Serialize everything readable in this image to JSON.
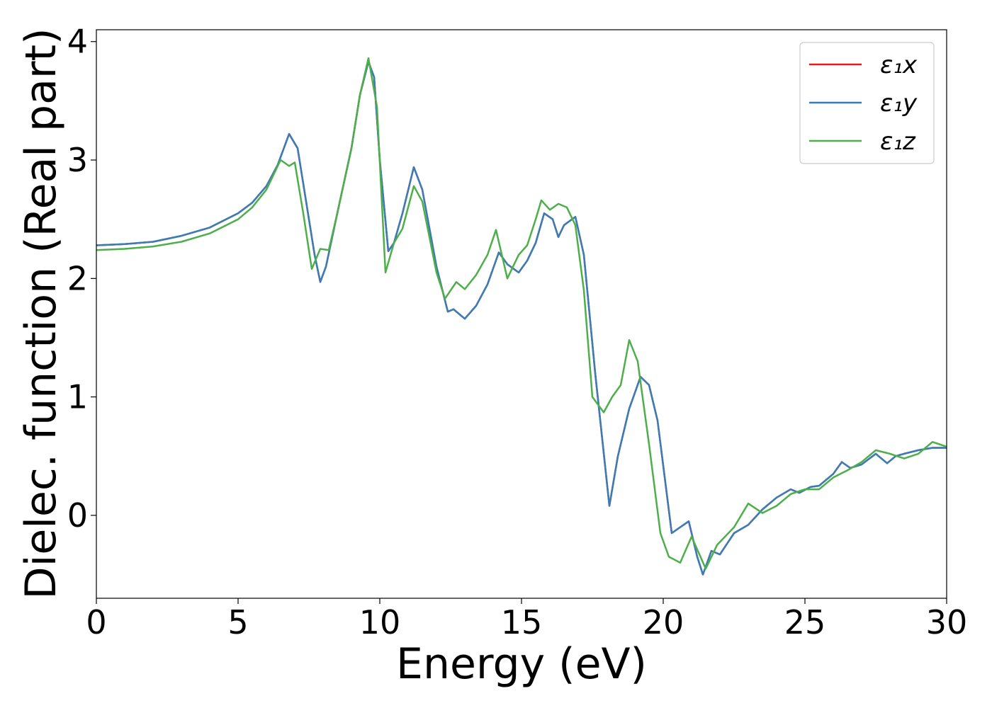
{
  "chart_data": {
    "type": "line",
    "title": "",
    "xlabel": "Energy (eV)",
    "ylabel": "Dielec. function (Real part)",
    "xlim": [
      0,
      30
    ],
    "ylim": [
      -0.7,
      4.1
    ],
    "xticks": [
      0,
      5,
      10,
      15,
      20,
      25,
      30
    ],
    "xtick_labels": [
      "0",
      "5",
      "10",
      "15",
      "20",
      "25",
      "30"
    ],
    "yticks": [
      0,
      1,
      2,
      3,
      4
    ],
    "ytick_labels": [
      "0",
      "1",
      "2",
      "3",
      "4"
    ],
    "grid": false,
    "legend_position": "top-right",
    "series": [
      {
        "name": "ε₁x",
        "color": "#e41a1c",
        "points": [
          [
            0,
            2.28
          ],
          [
            1,
            2.29
          ],
          [
            2,
            2.31
          ],
          [
            3,
            2.36
          ],
          [
            4,
            2.43
          ],
          [
            5,
            2.55
          ],
          [
            5.5,
            2.64
          ],
          [
            6,
            2.78
          ],
          [
            6.4,
            2.96
          ],
          [
            6.8,
            3.22
          ],
          [
            7.1,
            3.1
          ],
          [
            7.4,
            2.65
          ],
          [
            7.7,
            2.2
          ],
          [
            7.9,
            1.97
          ],
          [
            8.1,
            2.1
          ],
          [
            8.5,
            2.55
          ],
          [
            9,
            3.1
          ],
          [
            9.3,
            3.55
          ],
          [
            9.6,
            3.83
          ],
          [
            9.8,
            3.7
          ],
          [
            10,
            3.0
          ],
          [
            10.3,
            2.23
          ],
          [
            10.5,
            2.3
          ],
          [
            10.8,
            2.55
          ],
          [
            11.2,
            2.94
          ],
          [
            11.5,
            2.75
          ],
          [
            12,
            2.1
          ],
          [
            12.4,
            1.72
          ],
          [
            12.6,
            1.74
          ],
          [
            13,
            1.66
          ],
          [
            13.4,
            1.77
          ],
          [
            13.8,
            1.95
          ],
          [
            14.2,
            2.22
          ],
          [
            14.5,
            2.12
          ],
          [
            14.9,
            2.05
          ],
          [
            15.2,
            2.15
          ],
          [
            15.5,
            2.3
          ],
          [
            15.8,
            2.55
          ],
          [
            16.1,
            2.5
          ],
          [
            16.3,
            2.35
          ],
          [
            16.5,
            2.45
          ],
          [
            16.9,
            2.52
          ],
          [
            17.2,
            2.2
          ],
          [
            17.6,
            1.2
          ],
          [
            18.1,
            0.08
          ],
          [
            18.4,
            0.5
          ],
          [
            18.8,
            0.9
          ],
          [
            19.2,
            1.17
          ],
          [
            19.5,
            1.1
          ],
          [
            19.8,
            0.8
          ],
          [
            20.3,
            -0.15
          ],
          [
            20.6,
            -0.1
          ],
          [
            20.9,
            -0.05
          ],
          [
            21.2,
            -0.35
          ],
          [
            21.4,
            -0.5
          ],
          [
            21.7,
            -0.3
          ],
          [
            22,
            -0.33
          ],
          [
            22.5,
            -0.15
          ],
          [
            23,
            -0.08
          ],
          [
            23.5,
            0.05
          ],
          [
            24,
            0.15
          ],
          [
            24.5,
            0.22
          ],
          [
            24.8,
            0.19
          ],
          [
            25.2,
            0.24
          ],
          [
            25.5,
            0.25
          ],
          [
            26,
            0.35
          ],
          [
            26.3,
            0.45
          ],
          [
            26.6,
            0.4
          ],
          [
            27,
            0.43
          ],
          [
            27.5,
            0.52
          ],
          [
            27.9,
            0.44
          ],
          [
            28.2,
            0.5
          ],
          [
            28.5,
            0.52
          ],
          [
            29,
            0.55
          ],
          [
            29.5,
            0.57
          ],
          [
            30,
            0.57
          ]
        ]
      },
      {
        "name": "ε₁y",
        "color": "#377eb8",
        "points": [
          [
            0,
            2.28
          ],
          [
            1,
            2.29
          ],
          [
            2,
            2.31
          ],
          [
            3,
            2.36
          ],
          [
            4,
            2.43
          ],
          [
            5,
            2.55
          ],
          [
            5.5,
            2.64
          ],
          [
            6,
            2.78
          ],
          [
            6.4,
            2.96
          ],
          [
            6.8,
            3.22
          ],
          [
            7.1,
            3.1
          ],
          [
            7.4,
            2.65
          ],
          [
            7.7,
            2.2
          ],
          [
            7.9,
            1.97
          ],
          [
            8.1,
            2.1
          ],
          [
            8.5,
            2.55
          ],
          [
            9,
            3.1
          ],
          [
            9.3,
            3.55
          ],
          [
            9.6,
            3.83
          ],
          [
            9.8,
            3.7
          ],
          [
            10,
            3.0
          ],
          [
            10.3,
            2.23
          ],
          [
            10.5,
            2.3
          ],
          [
            10.8,
            2.55
          ],
          [
            11.2,
            2.94
          ],
          [
            11.5,
            2.75
          ],
          [
            12,
            2.1
          ],
          [
            12.4,
            1.72
          ],
          [
            12.6,
            1.74
          ],
          [
            13,
            1.66
          ],
          [
            13.4,
            1.77
          ],
          [
            13.8,
            1.95
          ],
          [
            14.2,
            2.22
          ],
          [
            14.5,
            2.12
          ],
          [
            14.9,
            2.05
          ],
          [
            15.2,
            2.15
          ],
          [
            15.5,
            2.3
          ],
          [
            15.8,
            2.55
          ],
          [
            16.1,
            2.5
          ],
          [
            16.3,
            2.35
          ],
          [
            16.5,
            2.45
          ],
          [
            16.9,
            2.52
          ],
          [
            17.2,
            2.2
          ],
          [
            17.6,
            1.2
          ],
          [
            18.1,
            0.08
          ],
          [
            18.4,
            0.5
          ],
          [
            18.8,
            0.9
          ],
          [
            19.2,
            1.17
          ],
          [
            19.5,
            1.1
          ],
          [
            19.8,
            0.8
          ],
          [
            20.3,
            -0.15
          ],
          [
            20.6,
            -0.1
          ],
          [
            20.9,
            -0.05
          ],
          [
            21.2,
            -0.35
          ],
          [
            21.4,
            -0.5
          ],
          [
            21.7,
            -0.3
          ],
          [
            22,
            -0.33
          ],
          [
            22.5,
            -0.15
          ],
          [
            23,
            -0.08
          ],
          [
            23.5,
            0.05
          ],
          [
            24,
            0.15
          ],
          [
            24.5,
            0.22
          ],
          [
            24.8,
            0.19
          ],
          [
            25.2,
            0.24
          ],
          [
            25.5,
            0.25
          ],
          [
            26,
            0.35
          ],
          [
            26.3,
            0.45
          ],
          [
            26.6,
            0.4
          ],
          [
            27,
            0.43
          ],
          [
            27.5,
            0.52
          ],
          [
            27.9,
            0.44
          ],
          [
            28.2,
            0.5
          ],
          [
            28.5,
            0.52
          ],
          [
            29,
            0.55
          ],
          [
            29.5,
            0.57
          ],
          [
            30,
            0.57
          ]
        ]
      },
      {
        "name": "ε₁z",
        "color": "#4daf4a",
        "points": [
          [
            0,
            2.24
          ],
          [
            1,
            2.25
          ],
          [
            2,
            2.27
          ],
          [
            3,
            2.31
          ],
          [
            4,
            2.38
          ],
          [
            5,
            2.5
          ],
          [
            5.5,
            2.6
          ],
          [
            6,
            2.75
          ],
          [
            6.5,
            3.0
          ],
          [
            6.8,
            2.95
          ],
          [
            7,
            2.98
          ],
          [
            7.3,
            2.55
          ],
          [
            7.6,
            2.08
          ],
          [
            7.9,
            2.25
          ],
          [
            8.2,
            2.24
          ],
          [
            8.5,
            2.55
          ],
          [
            9,
            3.1
          ],
          [
            9.3,
            3.55
          ],
          [
            9.6,
            3.86
          ],
          [
            9.9,
            3.45
          ],
          [
            10.2,
            2.05
          ],
          [
            10.5,
            2.3
          ],
          [
            10.8,
            2.42
          ],
          [
            11.2,
            2.78
          ],
          [
            11.5,
            2.65
          ],
          [
            12,
            2.05
          ],
          [
            12.3,
            1.83
          ],
          [
            12.7,
            1.97
          ],
          [
            13,
            1.91
          ],
          [
            13.4,
            2.03
          ],
          [
            13.8,
            2.2
          ],
          [
            14.1,
            2.41
          ],
          [
            14.5,
            2.0
          ],
          [
            14.9,
            2.2
          ],
          [
            15.2,
            2.28
          ],
          [
            15.5,
            2.5
          ],
          [
            15.7,
            2.66
          ],
          [
            16,
            2.58
          ],
          [
            16.3,
            2.63
          ],
          [
            16.6,
            2.6
          ],
          [
            16.9,
            2.45
          ],
          [
            17.2,
            1.9
          ],
          [
            17.5,
            1.0
          ],
          [
            17.9,
            0.87
          ],
          [
            18.2,
            1.0
          ],
          [
            18.5,
            1.1
          ],
          [
            18.8,
            1.48
          ],
          [
            19.1,
            1.3
          ],
          [
            19.5,
            0.6
          ],
          [
            19.9,
            -0.15
          ],
          [
            20.2,
            -0.35
          ],
          [
            20.6,
            -0.4
          ],
          [
            21,
            -0.18
          ],
          [
            21.5,
            -0.45
          ],
          [
            21.9,
            -0.25
          ],
          [
            22.5,
            -0.1
          ],
          [
            23,
            0.1
          ],
          [
            23.5,
            0.02
          ],
          [
            24,
            0.08
          ],
          [
            24.5,
            0.18
          ],
          [
            25,
            0.22
          ],
          [
            25.5,
            0.22
          ],
          [
            26,
            0.32
          ],
          [
            26.5,
            0.38
          ],
          [
            27,
            0.45
          ],
          [
            27.5,
            0.55
          ],
          [
            28,
            0.52
          ],
          [
            28.5,
            0.48
          ],
          [
            29,
            0.52
          ],
          [
            29.5,
            0.62
          ],
          [
            30,
            0.58
          ]
        ]
      }
    ]
  }
}
